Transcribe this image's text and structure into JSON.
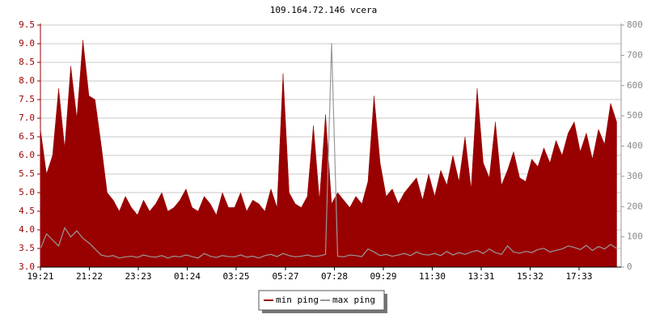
{
  "chart_data": {
    "type": "area",
    "title": "109.164.72.146 vcera",
    "xlim": [
      0,
      1436
    ],
    "xticks": [
      {
        "value": 0,
        "label": "19:21"
      },
      {
        "value": 121,
        "label": "21:22"
      },
      {
        "value": 242,
        "label": "23:23"
      },
      {
        "value": 363,
        "label": "01:24"
      },
      {
        "value": 484,
        "label": "03:25"
      },
      {
        "value": 606,
        "label": "05:27"
      },
      {
        "value": 727,
        "label": "07:28"
      },
      {
        "value": 848,
        "label": "09:29"
      },
      {
        "value": 969,
        "label": "11:30"
      },
      {
        "value": 1090,
        "label": "13:31"
      },
      {
        "value": 1211,
        "label": "15:32"
      },
      {
        "value": 1332,
        "label": "17:33"
      }
    ],
    "ylim": [
      3.0,
      9.5
    ],
    "yticks": [
      {
        "value": 3.0,
        "label": "3.0"
      },
      3.5,
      {
        "value": 4.0,
        "label": "4.0"
      },
      4.5,
      {
        "value": 5.0,
        "label": "5.0"
      },
      5.5,
      {
        "value": 6.0,
        "label": "6.0"
      },
      6.5,
      {
        "value": 7.0,
        "label": "7.0"
      },
      7.5,
      {
        "value": 8.0,
        "label": "8.0"
      },
      8.5,
      {
        "value": 9.0,
        "label": "9.0"
      },
      9.5
    ],
    "y2lim": [
      0,
      800
    ],
    "y2ticks": [
      0,
      100,
      200,
      300,
      400,
      500,
      600,
      700,
      800
    ],
    "grid": true,
    "legend": "bottom",
    "x": [
      0,
      15,
      30,
      45,
      60,
      75,
      90,
      105,
      120,
      135,
      150,
      165,
      180,
      195,
      210,
      225,
      240,
      255,
      270,
      285,
      300,
      315,
      330,
      345,
      360,
      375,
      390,
      405,
      420,
      435,
      450,
      465,
      480,
      495,
      510,
      525,
      540,
      555,
      570,
      585,
      600,
      615,
      630,
      645,
      660,
      675,
      690,
      705,
      720,
      735,
      750,
      765,
      780,
      795,
      810,
      825,
      840,
      855,
      870,
      885,
      900,
      915,
      930,
      945,
      960,
      975,
      990,
      1005,
      1020,
      1035,
      1050,
      1065,
      1080,
      1095,
      1110,
      1125,
      1140,
      1155,
      1170,
      1185,
      1200,
      1215,
      1230,
      1245,
      1260,
      1275,
      1290,
      1305,
      1320,
      1335,
      1350,
      1365,
      1380,
      1395,
      1410,
      1425
    ],
    "series": [
      {
        "name": "min ping",
        "color": "#990000",
        "kind": "area",
        "values": [
          6.7,
          5.5,
          6.0,
          7.8,
          6.2,
          8.4,
          7.0,
          9.1,
          7.6,
          7.5,
          6.3,
          5.0,
          4.8,
          4.5,
          4.9,
          4.6,
          4.4,
          4.8,
          4.5,
          4.7,
          5.0,
          4.5,
          4.6,
          4.8,
          5.1,
          4.6,
          4.5,
          4.9,
          4.7,
          4.4,
          5.0,
          4.6,
          4.6,
          5.0,
          4.5,
          4.8,
          4.7,
          4.5,
          5.1,
          4.6,
          8.2,
          5.0,
          4.7,
          4.6,
          4.9,
          6.8,
          4.8,
          7.1,
          4.7,
          5.0,
          4.8,
          4.6,
          4.9,
          4.7,
          5.3,
          7.6,
          5.8,
          4.9,
          5.1,
          4.7,
          5.0,
          5.2,
          5.4,
          4.8,
          5.5,
          4.9,
          5.6,
          5.2,
          6.0,
          5.3,
          6.5,
          5.1,
          7.8,
          5.8,
          5.4,
          6.9,
          5.2,
          5.6,
          6.1,
          5.4,
          5.3,
          5.9,
          5.7,
          6.2,
          5.8,
          6.4,
          6.0,
          6.6,
          6.9,
          6.1,
          6.6,
          5.9,
          6.7,
          6.3,
          7.4,
          6.9
        ]
      },
      {
        "name": "max ping",
        "color": "#999999",
        "kind": "line",
        "axis": "y2",
        "values": [
          60,
          110,
          90,
          70,
          130,
          100,
          120,
          95,
          80,
          60,
          40,
          35,
          38,
          30,
          34,
          36,
          32,
          40,
          35,
          33,
          38,
          30,
          36,
          34,
          40,
          35,
          30,
          45,
          36,
          32,
          38,
          35,
          34,
          40,
          33,
          36,
          30,
          38,
          42,
          35,
          45,
          38,
          34,
          36,
          40,
          35,
          37,
          42,
          740,
          36,
          34,
          40,
          38,
          35,
          60,
          50,
          38,
          42,
          36,
          40,
          45,
          38,
          50,
          42,
          40,
          45,
          38,
          52,
          40,
          48,
          42,
          50,
          55,
          45,
          60,
          48,
          42,
          70,
          50,
          46,
          52,
          48,
          58,
          62,
          50,
          55,
          60,
          70,
          65,
          58,
          72,
          55,
          68,
          60,
          75,
          62
        ]
      }
    ]
  }
}
